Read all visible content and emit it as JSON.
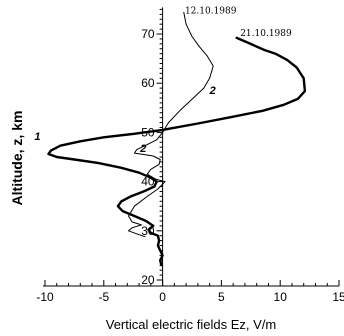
{
  "chart_data": {
    "type": "line",
    "title": "",
    "xlabel": "Vertical electric fields Ez, V/m",
    "ylabel": "Altitude, z, km",
    "xlim": [
      -10,
      15
    ],
    "ylim": [
      20,
      75
    ],
    "xticks": [
      "-10",
      "-5",
      "0",
      "5",
      "10",
      "15"
    ],
    "yticks": [
      "20",
      "30",
      "40",
      "50",
      "60",
      "70"
    ],
    "grid": false,
    "series": [
      {
        "name": "21.10.1989",
        "curve_label": "1",
        "line_width": "thick",
        "points": [
          [
            6.3,
            69.2
          ],
          [
            7.3,
            68.2
          ],
          [
            8.6,
            66.8
          ],
          [
            9.6,
            66.0
          ],
          [
            10.6,
            64.7
          ],
          [
            11.4,
            63.2
          ],
          [
            12.0,
            61.0
          ],
          [
            12.1,
            58.4
          ],
          [
            11.5,
            56.8
          ],
          [
            10.3,
            55.6
          ],
          [
            8.5,
            54.4
          ],
          [
            6.0,
            53.2
          ],
          [
            3.0,
            51.8
          ],
          [
            0.0,
            50.5
          ],
          [
            -2.5,
            49.7
          ],
          [
            -5.0,
            49.0
          ],
          [
            -7.0,
            48.2
          ],
          [
            -8.7,
            47.3
          ],
          [
            -9.5,
            46.3
          ],
          [
            -9.7,
            45.6
          ],
          [
            -9.0,
            45.0
          ],
          [
            -7.5,
            44.5
          ],
          [
            -5.5,
            43.8
          ],
          [
            -3.5,
            42.8
          ],
          [
            -2.0,
            41.8
          ],
          [
            -1.0,
            40.8
          ],
          [
            -0.5,
            40.0
          ],
          [
            -0.7,
            39.0
          ],
          [
            -1.6,
            38.0
          ],
          [
            -2.7,
            37.0
          ],
          [
            -3.5,
            36.0
          ],
          [
            -3.8,
            35.0
          ],
          [
            -3.4,
            34.0
          ],
          [
            -2.4,
            33.0
          ],
          [
            -1.4,
            32.0
          ],
          [
            -0.8,
            31.0
          ],
          [
            -1.2,
            30.2
          ],
          [
            -1.0,
            29.6
          ],
          [
            -0.4,
            29.0
          ],
          [
            -0.3,
            28.0
          ],
          [
            -0.4,
            27.0
          ],
          [
            -0.2,
            26.0
          ],
          [
            0.0,
            25.0
          ],
          [
            -0.2,
            24.0
          ],
          [
            -0.1,
            23.0
          ]
        ]
      },
      {
        "name": "12.10.1989",
        "curve_label": "2",
        "line_width": "thin",
        "points": [
          [
            1.8,
            74.4
          ],
          [
            2.0,
            72.0
          ],
          [
            2.5,
            69.5
          ],
          [
            3.1,
            67.5
          ],
          [
            3.8,
            65.5
          ],
          [
            4.3,
            63.5
          ],
          [
            4.0,
            61.0
          ],
          [
            3.5,
            59.0
          ],
          [
            2.4,
            56.5
          ],
          [
            1.5,
            54.5
          ],
          [
            0.5,
            52.0
          ],
          [
            0.0,
            50.0
          ],
          [
            -0.5,
            48.5
          ],
          [
            -1.5,
            47.3
          ],
          [
            -2.2,
            46.5
          ],
          [
            -2.4,
            45.8
          ],
          [
            -1.6,
            45.5
          ],
          [
            -0.8,
            45.2
          ],
          [
            -0.2,
            44.5
          ],
          [
            -0.3,
            43.5
          ],
          [
            -1.0,
            42.5
          ],
          [
            -1.3,
            41.5
          ],
          [
            -0.6,
            40.5
          ],
          [
            0.2,
            40.0
          ],
          [
            -0.4,
            38.5
          ],
          [
            -1.3,
            37.0
          ],
          [
            -2.4,
            35.0
          ],
          [
            -2.9,
            33.0
          ],
          [
            -2.6,
            31.8
          ],
          [
            -1.8,
            31.2
          ],
          [
            -2.6,
            30.6
          ],
          [
            -2.9,
            30.0
          ],
          [
            -2.2,
            29.4
          ],
          [
            -1.5,
            28.8
          ]
        ]
      }
    ]
  }
}
